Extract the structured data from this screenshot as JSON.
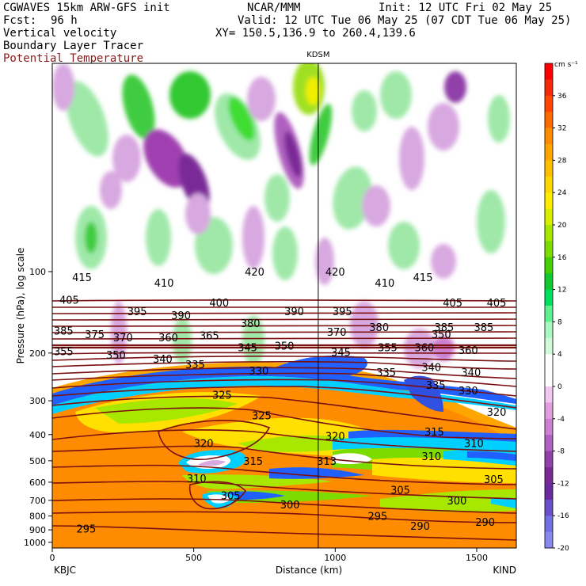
{
  "header": {
    "model": "CGWAVES 15km ARW-GFS init",
    "org": "NCAR/MMM",
    "init": "Init: 12 UTC Fri 02 May 25",
    "fcst_label": "Fcst:",
    "fcst_value": "96 h",
    "valid": "Valid: 12 UTC Tue 06 May 25 (07 CDT Tue 06 May 25)",
    "xy": "XY= 150.5,136.9 to 260.4,139.6",
    "fields": [
      "Vertical velocity",
      "Boundary Layer Tracer",
      "Potential Temperature"
    ],
    "field_colors": [
      "#000000",
      "#000000",
      "#8b1a1a"
    ]
  },
  "chart_data": {
    "type": "heatmap",
    "xlabel": "Distance (km)",
    "ylabel": "Pressure (hPa), log scale",
    "x_ticks": [
      0,
      500,
      1000,
      1500
    ],
    "xlim": [
      0,
      1640
    ],
    "y_ticks": [
      100,
      200,
      300,
      400,
      500,
      600,
      700,
      800,
      900,
      1000
    ],
    "ylim": [
      1050,
      17
    ],
    "y_scale": "log",
    "start_station": "KBJC",
    "end_station": "KIND",
    "marker_station": "KDSM",
    "marker_x": 940,
    "colorbar": {
      "unit": "cm s⁻¹",
      "tick_labels": [
        36,
        32,
        28,
        24,
        20,
        16,
        12,
        8,
        4,
        0,
        -4,
        -8,
        -12,
        -16,
        -20
      ],
      "colors": [
        "#ff0000",
        "#f52a0a",
        "#ff4500",
        "#ff6a00",
        "#ff8c00",
        "#ffa500",
        "#ffbf00",
        "#ffd700",
        "#ffee00",
        "#d8f000",
        "#a8e800",
        "#7cdc00",
        "#44d000",
        "#10c830",
        "#00e060",
        "#60f090",
        "#a8f8c0",
        "#d0fad8",
        "#ffffff",
        "#ffffff",
        "#f0c8f0",
        "#e0a0e0",
        "#cc80d0",
        "#b060c0",
        "#9040a8",
        "#7a2a96",
        "#6a2aa0",
        "#6a50c8",
        "#7070e0",
        "#8888f0"
      ]
    },
    "theta_labels": [
      {
        "x": 105,
        "p": 105,
        "v": "415"
      },
      {
        "x": 395,
        "p": 110,
        "v": "410"
      },
      {
        "x": 715,
        "p": 100,
        "v": "420"
      },
      {
        "x": 1000,
        "p": 100,
        "v": "420"
      },
      {
        "x": 1175,
        "p": 110,
        "v": "410"
      },
      {
        "x": 1310,
        "p": 105,
        "v": "415"
      },
      {
        "x": 60,
        "p": 127,
        "v": "405"
      },
      {
        "x": 300,
        "p": 140,
        "v": "395"
      },
      {
        "x": 455,
        "p": 145,
        "v": "390"
      },
      {
        "x": 590,
        "p": 130,
        "v": "400"
      },
      {
        "x": 855,
        "p": 140,
        "v": "390"
      },
      {
        "x": 1025,
        "p": 140,
        "v": "395"
      },
      {
        "x": 1415,
        "p": 130,
        "v": "405"
      },
      {
        "x": 1570,
        "p": 130,
        "v": "405"
      },
      {
        "x": 700,
        "p": 155,
        "v": "380"
      },
      {
        "x": 40,
        "p": 165,
        "v": "385"
      },
      {
        "x": 150,
        "p": 170,
        "v": "375"
      },
      {
        "x": 250,
        "p": 175,
        "v": "370"
      },
      {
        "x": 410,
        "p": 175,
        "v": "360"
      },
      {
        "x": 555,
        "p": 172,
        "v": "365"
      },
      {
        "x": 1005,
        "p": 167,
        "v": "370"
      },
      {
        "x": 1155,
        "p": 160,
        "v": "380"
      },
      {
        "x": 1385,
        "p": 160,
        "v": "385"
      },
      {
        "x": 1525,
        "p": 160,
        "v": "385"
      },
      {
        "x": 1375,
        "p": 170,
        "v": "350"
      },
      {
        "x": 40,
        "p": 197,
        "v": "355"
      },
      {
        "x": 225,
        "p": 203,
        "v": "350"
      },
      {
        "x": 390,
        "p": 210,
        "v": "340"
      },
      {
        "x": 690,
        "p": 190,
        "v": "345"
      },
      {
        "x": 820,
        "p": 188,
        "v": "350"
      },
      {
        "x": 1020,
        "p": 198,
        "v": "345"
      },
      {
        "x": 1185,
        "p": 190,
        "v": "355"
      },
      {
        "x": 1315,
        "p": 190,
        "v": "360"
      },
      {
        "x": 1470,
        "p": 195,
        "v": "360"
      },
      {
        "x": 505,
        "p": 220,
        "v": "335"
      },
      {
        "x": 730,
        "p": 232,
        "v": "330"
      },
      {
        "x": 1180,
        "p": 235,
        "v": "335"
      },
      {
        "x": 1340,
        "p": 225,
        "v": "340"
      },
      {
        "x": 1480,
        "p": 235,
        "v": "340"
      },
      {
        "x": 1355,
        "p": 262,
        "v": "335"
      },
      {
        "x": 1470,
        "p": 275,
        "v": "330"
      },
      {
        "x": 600,
        "p": 285,
        "v": "325"
      },
      {
        "x": 740,
        "p": 340,
        "v": "325"
      },
      {
        "x": 1570,
        "p": 330,
        "v": "320"
      },
      {
        "x": 1000,
        "p": 405,
        "v": "320"
      },
      {
        "x": 1350,
        "p": 390,
        "v": "315"
      },
      {
        "x": 1490,
        "p": 430,
        "v": "310"
      },
      {
        "x": 535,
        "p": 430,
        "v": "320"
      },
      {
        "x": 710,
        "p": 500,
        "v": "315"
      },
      {
        "x": 970,
        "p": 500,
        "v": "313"
      },
      {
        "x": 1340,
        "p": 480,
        "v": "310"
      },
      {
        "x": 510,
        "p": 580,
        "v": "310"
      },
      {
        "x": 1560,
        "p": 585,
        "v": "305"
      },
      {
        "x": 630,
        "p": 670,
        "v": "305"
      },
      {
        "x": 1230,
        "p": 640,
        "v": "305"
      },
      {
        "x": 840,
        "p": 725,
        "v": "300"
      },
      {
        "x": 1430,
        "p": 700,
        "v": "300"
      },
      {
        "x": 1150,
        "p": 800,
        "v": "295"
      },
      {
        "x": 120,
        "p": 890,
        "v": "295"
      },
      {
        "x": 1300,
        "p": 870,
        "v": "290"
      },
      {
        "x": 1530,
        "p": 840,
        "v": "290"
      }
    ]
  }
}
